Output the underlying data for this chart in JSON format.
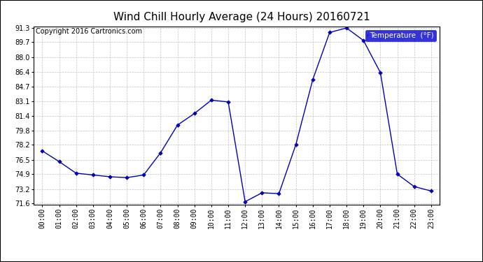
{
  "title": "Wind Chill Hourly Average (24 Hours) 20160721",
  "copyright": "Copyright 2016 Cartronics.com",
  "legend_label": "Temperature  (°F)",
  "hours": [
    "00:00",
    "01:00",
    "02:00",
    "03:00",
    "04:00",
    "05:00",
    "06:00",
    "07:00",
    "08:00",
    "09:00",
    "10:00",
    "11:00",
    "12:00",
    "13:00",
    "14:00",
    "15:00",
    "16:00",
    "17:00",
    "18:00",
    "19:00",
    "20:00",
    "21:00",
    "22:00",
    "23:00"
  ],
  "values24": [
    77.5,
    76.3,
    75.0,
    74.8,
    74.6,
    74.5,
    74.8,
    77.3,
    80.4,
    81.7,
    83.2,
    83.0,
    71.8,
    72.8,
    72.7,
    78.2,
    85.5,
    90.8,
    91.3,
    89.9,
    86.3,
    74.9,
    73.5,
    73.0
  ],
  "ylim_low": 71.6,
  "ylim_high": 91.3,
  "yticks": [
    71.6,
    73.2,
    74.9,
    76.5,
    78.2,
    79.8,
    81.4,
    83.1,
    84.7,
    86.4,
    88.0,
    89.7,
    91.3
  ],
  "line_color": "#0000bb",
  "marker_color": "#0000bb",
  "bg_color": "#ffffff",
  "grid_color": "#bbbbbb",
  "title_fontsize": 11,
  "copyright_fontsize": 7,
  "tick_fontsize": 7,
  "legend_bg": "#0000cc",
  "legend_text_color": "#ffffff",
  "border_color": "#000000"
}
